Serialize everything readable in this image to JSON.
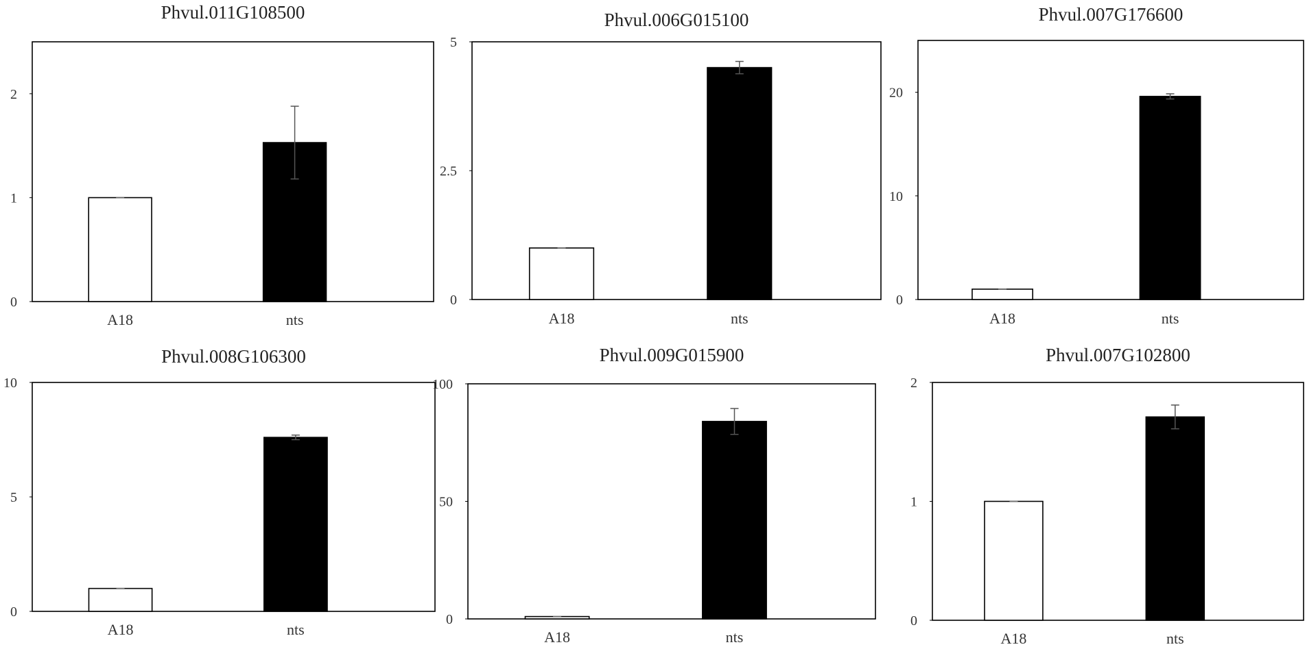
{
  "chart_data": [
    {
      "type": "bar",
      "title": "Phvul.011G108500",
      "categories": [
        "A18",
        "nts"
      ],
      "values": [
        1.0,
        1.53
      ],
      "errors": [
        0.0,
        0.35
      ],
      "ylim": [
        0,
        2.5
      ],
      "yticks": [
        0,
        1,
        2
      ],
      "ytick_labels": [
        "0",
        "1",
        "2"
      ],
      "bar_colors": [
        "#ffffff",
        "#000000"
      ],
      "grid": false
    },
    {
      "type": "bar",
      "title": "Phvul.006G015100",
      "categories": [
        "A18",
        "nts"
      ],
      "values": [
        1.0,
        4.5
      ],
      "errors": [
        0.0,
        0.12
      ],
      "ylim": [
        0,
        5
      ],
      "yticks": [
        0,
        2.5,
        5
      ],
      "ytick_labels": [
        "0",
        "2.5",
        "5"
      ],
      "bar_colors": [
        "#ffffff",
        "#000000"
      ],
      "grid": false
    },
    {
      "type": "bar",
      "title": "Phvul.007G176600",
      "categories": [
        "A18",
        "nts"
      ],
      "values": [
        1.0,
        19.6
      ],
      "errors": [
        0.0,
        0.25
      ],
      "ylim": [
        0,
        25
      ],
      "yticks": [
        0,
        10,
        20
      ],
      "ytick_labels": [
        "0",
        "10",
        "20"
      ],
      "bar_colors": [
        "#ffffff",
        "#000000"
      ],
      "grid": false
    },
    {
      "type": "bar",
      "title": "Phvul.008G106300",
      "categories": [
        "A18",
        "nts"
      ],
      "values": [
        1.0,
        7.6
      ],
      "errors": [
        0.0,
        0.1
      ],
      "ylim": [
        0,
        10
      ],
      "yticks": [
        0,
        5,
        10
      ],
      "ytick_labels": [
        "0",
        "5",
        "10"
      ],
      "bar_colors": [
        "#ffffff",
        "#000000"
      ],
      "grid": false
    },
    {
      "type": "bar",
      "title": "Phvul.009G015900",
      "categories": [
        "A18",
        "nts"
      ],
      "values": [
        1.0,
        84.0
      ],
      "errors": [
        0.0,
        5.5
      ],
      "ylim": [
        0,
        100
      ],
      "yticks": [
        0,
        50,
        100
      ],
      "ytick_labels": [
        "0",
        "50",
        "100"
      ],
      "bar_colors": [
        "#ffffff",
        "#000000"
      ],
      "grid": false
    },
    {
      "type": "bar",
      "title": "Phvul.007G102800",
      "categories": [
        "A18",
        "nts"
      ],
      "values": [
        1.0,
        1.71
      ],
      "errors": [
        0.0,
        0.1
      ],
      "ylim": [
        0,
        2
      ],
      "yticks": [
        0,
        1,
        2
      ],
      "ytick_labels": [
        "0",
        "1",
        "2"
      ],
      "bar_colors": [
        "#ffffff",
        "#000000"
      ],
      "grid": false
    }
  ]
}
